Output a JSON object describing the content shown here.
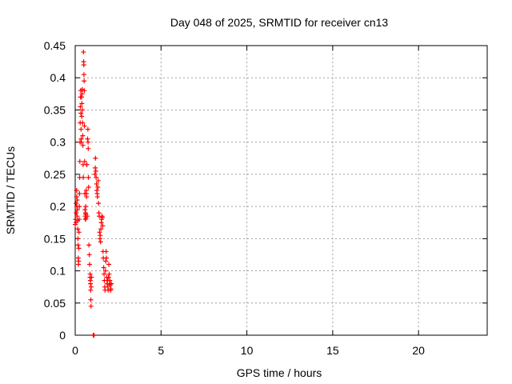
{
  "chart_data": {
    "type": "scatter",
    "title": "Day 048 of 2025, SRMTID for receiver cn13",
    "xlabel": "GPS time / hours",
    "ylabel": "SRMTID / TECUs",
    "xlim": [
      0,
      24
    ],
    "ylim": [
      0,
      0.45
    ],
    "grid": true,
    "marker": "+",
    "color": "#ff0000",
    "x_ticks": [
      0,
      5,
      10,
      15,
      20
    ],
    "x_tick_labels": [
      "0",
      "5",
      "10",
      "15",
      "20"
    ],
    "y_ticks": [
      0,
      0.05,
      0.1,
      0.15,
      0.2,
      0.25,
      0.3,
      0.35,
      0.4,
      0.45
    ],
    "y_tick_labels": [
      "0",
      "0.05",
      "0.1",
      "0.15",
      "0.2",
      "0.25",
      "0.3",
      "0.35",
      "0.4",
      "0.45"
    ],
    "series": [
      {
        "name": "SRMTID",
        "points": [
          [
            0.0,
            0.172
          ],
          [
            0.02,
            0.18
          ],
          [
            0.04,
            0.175
          ],
          [
            0.05,
            0.205
          ],
          [
            0.06,
            0.19
          ],
          [
            0.08,
            0.225
          ],
          [
            0.09,
            0.215
          ],
          [
            0.1,
            0.2
          ],
          [
            0.11,
            0.185
          ],
          [
            0.12,
            0.21
          ],
          [
            0.13,
            0.195
          ],
          [
            0.14,
            0.178
          ],
          [
            0.15,
            0.165
          ],
          [
            0.16,
            0.15
          ],
          [
            0.17,
            0.14
          ],
          [
            0.18,
            0.12
          ],
          [
            0.19,
            0.11
          ],
          [
            0.2,
            0.115
          ],
          [
            0.21,
            0.135
          ],
          [
            0.22,
            0.16
          ],
          [
            0.23,
            0.18
          ],
          [
            0.24,
            0.2
          ],
          [
            0.25,
            0.22
          ],
          [
            0.26,
            0.245
          ],
          [
            0.27,
            0.27
          ],
          [
            0.28,
            0.3
          ],
          [
            0.29,
            0.33
          ],
          [
            0.3,
            0.355
          ],
          [
            0.31,
            0.37
          ],
          [
            0.32,
            0.38
          ],
          [
            0.33,
            0.345
          ],
          [
            0.34,
            0.32
          ],
          [
            0.35,
            0.305
          ],
          [
            0.36,
            0.3
          ],
          [
            0.37,
            0.37
          ],
          [
            0.38,
            0.34
          ],
          [
            0.39,
            0.36
          ],
          [
            0.4,
            0.375
          ],
          [
            0.41,
            0.382
          ],
          [
            0.42,
            0.35
          ],
          [
            0.43,
            0.33
          ],
          [
            0.44,
            0.31
          ],
          [
            0.45,
            0.295
          ],
          [
            0.46,
            0.265
          ],
          [
            0.47,
            0.245
          ],
          [
            0.48,
            0.44
          ],
          [
            0.49,
            0.425
          ],
          [
            0.5,
            0.42
          ],
          [
            0.51,
            0.405
          ],
          [
            0.52,
            0.395
          ],
          [
            0.53,
            0.38
          ],
          [
            0.54,
            0.325
          ],
          [
            0.55,
            0.27
          ],
          [
            0.56,
            0.22
          ],
          [
            0.57,
            0.195
          ],
          [
            0.58,
            0.185
          ],
          [
            0.59,
            0.18
          ],
          [
            0.6,
            0.19
          ],
          [
            0.61,
            0.2
          ],
          [
            0.62,
            0.188
          ],
          [
            0.63,
            0.182
          ],
          [
            0.64,
            0.225
          ],
          [
            0.65,
            0.22
          ],
          [
            0.66,
            0.215
          ],
          [
            0.67,
            0.265
          ],
          [
            0.68,
            0.265
          ],
          [
            0.7,
            0.185
          ],
          [
            0.72,
            0.305
          ],
          [
            0.74,
            0.32
          ],
          [
            0.75,
            0.3
          ],
          [
            0.76,
            0.29
          ],
          [
            0.77,
            0.245
          ],
          [
            0.78,
            0.23
          ],
          [
            0.8,
            0.14
          ],
          [
            0.82,
            0.125
          ],
          [
            0.84,
            0.11
          ],
          [
            0.86,
            0.09
          ],
          [
            0.87,
            0.095
          ],
          [
            0.88,
            0.085
          ],
          [
            0.89,
            0.08
          ],
          [
            0.9,
            0.07
          ],
          [
            0.91,
            0.055
          ],
          [
            0.92,
            0.045
          ],
          [
            0.93,
            0.075
          ],
          [
            0.95,
            0.09
          ],
          [
            1.05,
            0.0
          ],
          [
            1.08,
            0.0
          ],
          [
            1.1,
            0.0
          ],
          [
            1.15,
            0.25
          ],
          [
            1.17,
            0.26
          ],
          [
            1.18,
            0.275
          ],
          [
            1.2,
            0.255
          ],
          [
            1.22,
            0.245
          ],
          [
            1.24,
            0.235
          ],
          [
            1.26,
            0.225
          ],
          [
            1.28,
            0.22
          ],
          [
            1.3,
            0.215
          ],
          [
            1.32,
            0.23
          ],
          [
            1.34,
            0.24
          ],
          [
            1.36,
            0.205
          ],
          [
            1.38,
            0.19
          ],
          [
            1.4,
            0.185
          ],
          [
            1.42,
            0.16
          ],
          [
            1.44,
            0.15
          ],
          [
            1.46,
            0.155
          ],
          [
            1.48,
            0.145
          ],
          [
            1.5,
            0.165
          ],
          [
            1.52,
            0.175
          ],
          [
            1.54,
            0.18
          ],
          [
            1.56,
            0.185
          ],
          [
            1.58,
            0.183
          ],
          [
            1.6,
            0.17
          ],
          [
            1.62,
            0.13
          ],
          [
            1.64,
            0.12
          ],
          [
            1.66,
            0.105
          ],
          [
            1.68,
            0.095
          ],
          [
            1.7,
            0.085
          ],
          [
            1.72,
            0.075
          ],
          [
            1.74,
            0.07
          ],
          [
            1.76,
            0.1
          ],
          [
            1.78,
            0.115
          ],
          [
            1.8,
            0.13
          ],
          [
            1.82,
            0.12
          ],
          [
            1.84,
            0.09
          ],
          [
            1.86,
            0.08
          ],
          [
            1.88,
            0.085
          ],
          [
            1.9,
            0.075
          ],
          [
            1.92,
            0.07
          ],
          [
            1.94,
            0.09
          ],
          [
            1.96,
            0.11
          ],
          [
            1.98,
            0.095
          ],
          [
            2.0,
            0.08
          ],
          [
            2.02,
            0.085
          ],
          [
            2.04,
            0.078
          ],
          [
            2.06,
            0.07
          ],
          [
            2.08,
            0.072
          ],
          [
            2.1,
            0.08
          ]
        ]
      }
    ]
  }
}
